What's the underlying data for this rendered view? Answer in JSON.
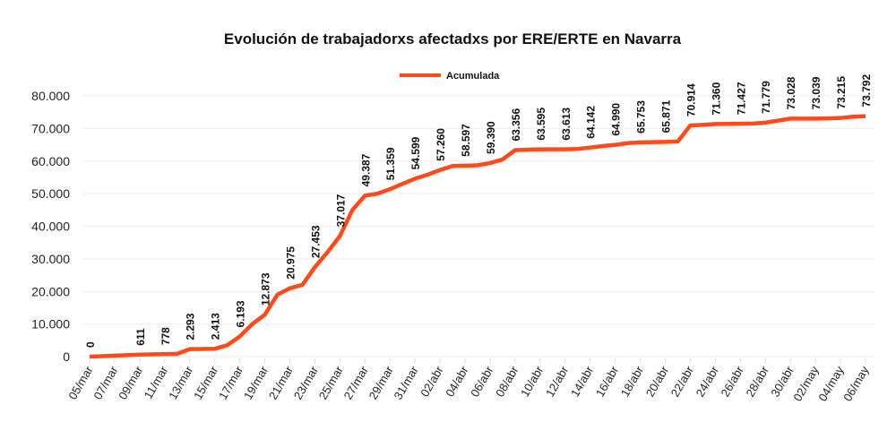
{
  "chart_data": {
    "type": "line",
    "title": "Evolución de trabajadorxs afectadxs por ERE/ERTE en Navarra",
    "xlabel": "",
    "ylabel": "",
    "ylim": [
      0,
      80000
    ],
    "yticks": [
      0,
      10000,
      20000,
      30000,
      40000,
      50000,
      60000,
      70000,
      80000
    ],
    "ytick_labels": [
      "0",
      "10.000",
      "20.000",
      "30.000",
      "40.000",
      "50.000",
      "60.000",
      "70.000",
      "80.000"
    ],
    "grid": true,
    "legend_position": "top-center",
    "color": "#ff4a1c",
    "x": [
      "05/mar",
      "06/mar",
      "07/mar",
      "08/mar",
      "09/mar",
      "10/mar",
      "11/mar",
      "12/mar",
      "13/mar",
      "14/mar",
      "15/mar",
      "16/mar",
      "17/mar",
      "18/mar",
      "19/mar",
      "20/mar",
      "21/mar",
      "22/mar",
      "23/mar",
      "24/mar",
      "25/mar",
      "26/mar",
      "27/mar",
      "28/mar",
      "29/mar",
      "30/mar",
      "31/mar",
      "01/abr",
      "02/abr",
      "03/abr",
      "04/abr",
      "05/abr",
      "06/abr",
      "07/abr",
      "08/abr",
      "09/abr",
      "10/abr",
      "11/abr",
      "12/abr",
      "13/abr",
      "14/abr",
      "15/abr",
      "16/abr",
      "17/abr",
      "18/abr",
      "19/abr",
      "20/abr",
      "21/abr",
      "22/abr",
      "23/abr",
      "24/abr",
      "25/abr",
      "26/abr",
      "27/abr",
      "28/abr",
      "29/abr",
      "30/abr",
      "01/may",
      "02/may",
      "03/may",
      "04/may",
      "05/may",
      "06/may"
    ],
    "xtick_labels": [
      "05/mar",
      "07/mar",
      "09/mar",
      "11/mar",
      "13/mar",
      "15/mar",
      "17/mar",
      "19/mar",
      "21/mar",
      "23/mar",
      "25/mar",
      "27/mar",
      "29/mar",
      "31/mar",
      "02/abr",
      "04/abr",
      "06/abr",
      "08/abr",
      "10/abr",
      "12/abr",
      "14/abr",
      "16/abr",
      "18/abr",
      "20/abr",
      "22/abr",
      "24/abr",
      "26/abr",
      "28/abr",
      "30/abr",
      "02/may",
      "04/may",
      "06/may"
    ],
    "series": [
      {
        "name": "Acumulada",
        "values": [
          0,
          150,
          300,
          450,
          611,
          700,
          778,
          850,
          2293,
          2350,
          2413,
          3500,
          6193,
          10000,
          12873,
          19000,
          20975,
          22000,
          27453,
          32000,
          37017,
          45000,
          49387,
          50000,
          51359,
          53000,
          54599,
          55800,
          57260,
          58500,
          58597,
          58700,
          59390,
          60500,
          63356,
          63500,
          63595,
          63600,
          63613,
          63700,
          64142,
          64600,
          64990,
          65500,
          65753,
          65800,
          65871,
          66000,
          70914,
          71100,
          71360,
          71400,
          71427,
          71500,
          71779,
          72400,
          73028,
          73030,
          73039,
          73100,
          73215,
          73600,
          73792
        ],
        "data_labels": [
          "0",
          "",
          "",
          "",
          "611",
          "",
          "778",
          "",
          "2.293",
          "",
          "2.413",
          "",
          "6.193",
          "",
          "12.873",
          "",
          "20.975",
          "",
          "27.453",
          "",
          "37.017",
          "",
          "49.387",
          "",
          "51.359",
          "",
          "54.599",
          "",
          "57.260",
          "",
          "58.597",
          "",
          "59.390",
          "",
          "63.356",
          "",
          "63.595",
          "",
          "63.613",
          "",
          "64.142",
          "",
          "64.990",
          "",
          "65.753",
          "",
          "65.871",
          "",
          "70.914",
          "",
          "71.360",
          "",
          "71.427",
          "",
          "71.779",
          "",
          "73.028",
          "",
          "73.039",
          "",
          "73.215",
          "",
          "73.792"
        ]
      }
    ]
  }
}
